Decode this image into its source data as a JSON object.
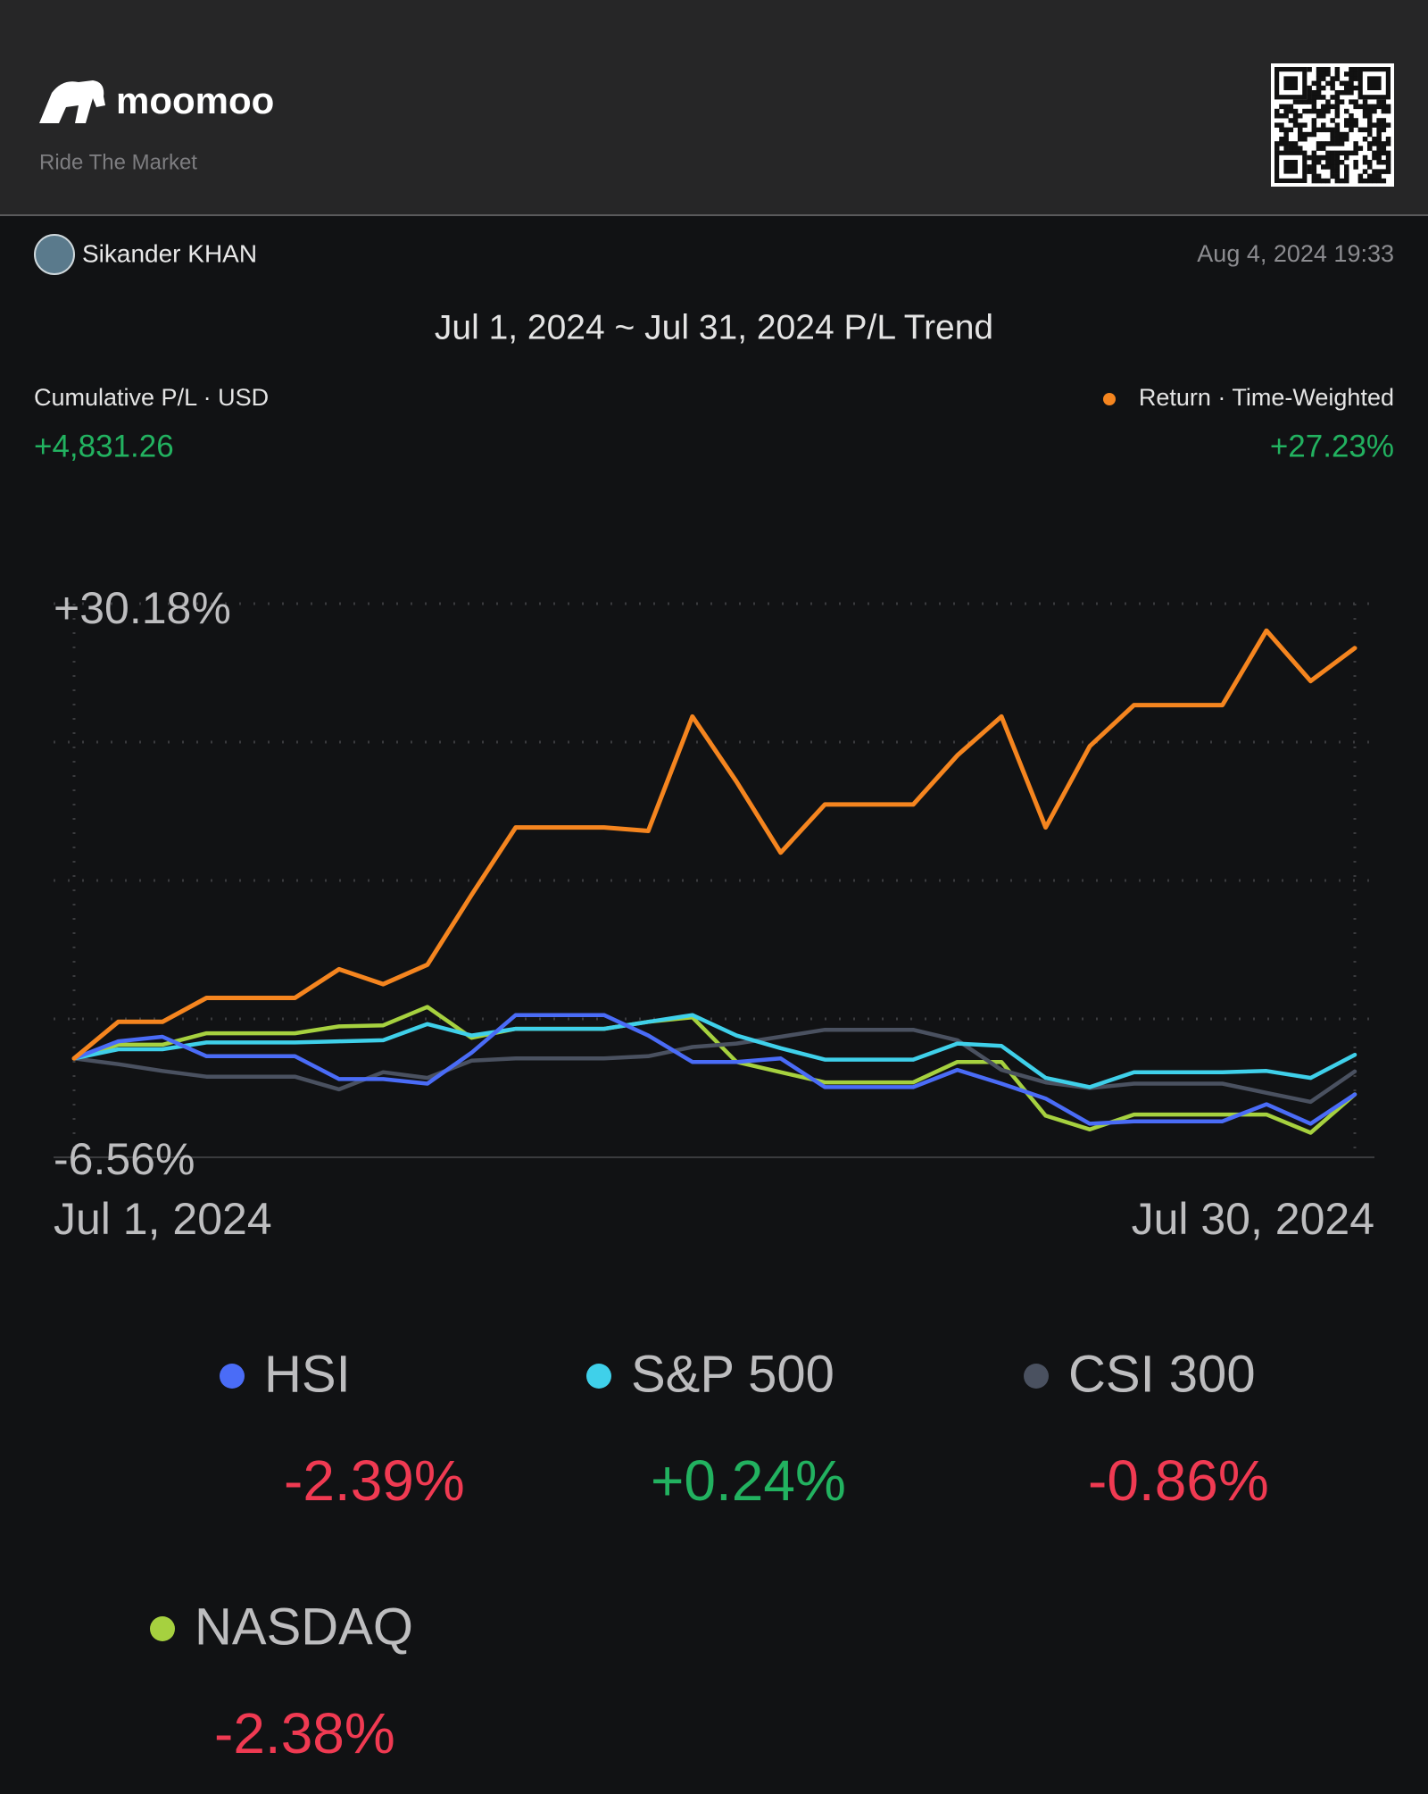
{
  "header": {
    "brand": "moomoo",
    "tagline": "Ride The Market"
  },
  "user": {
    "name": "Sikander KHAN",
    "timestamp": "Aug 4, 2024 19:33"
  },
  "summary": {
    "pl_label": "Cumulative P/L · USD",
    "pl_value": "+4,831.26"
  },
  "chart_data": {
    "type": "line",
    "title": "Jul 1, 2024 ~ Jul 31, 2024 P/L Trend",
    "categories": [
      "Jul 1, 2024",
      null,
      null,
      null,
      null,
      null,
      null,
      null,
      null,
      null,
      null,
      null,
      null,
      null,
      null,
      null,
      null,
      null,
      null,
      null,
      null,
      null,
      null,
      null,
      null,
      null,
      null,
      null,
      null,
      "Jul 30, 2024"
    ],
    "ylim": [
      -6.56,
      30.18
    ],
    "yticks": [
      {
        "value": 30.18,
        "label": "+30.18%"
      },
      {
        "value": -6.56,
        "label": "-6.56%"
      }
    ],
    "grid": true,
    "series": [
      {
        "name": "Return · Time-Weighted",
        "color": "#f5851f",
        "change": 27.23,
        "change_label": "+27.23%",
        "values": [
          0,
          2.43,
          2.43,
          4.02,
          4.02,
          4.02,
          5.92,
          4.93,
          6.22,
          10.85,
          15.33,
          15.33,
          15.33,
          15.1,
          22.69,
          18.37,
          13.66,
          16.85,
          16.85,
          16.85,
          20.11,
          22.69,
          15.33,
          20.72,
          23.45,
          23.45,
          23.45,
          28.39,
          25.05,
          27.23
        ]
      },
      {
        "name": "HSI",
        "color": "#4a6cf7",
        "change": -2.39,
        "change_label": "-2.39%",
        "values": [
          0,
          1.14,
          1.44,
          0.15,
          0.15,
          0.15,
          -1.37,
          -1.37,
          -1.67,
          0.38,
          2.88,
          2.88,
          2.88,
          1.52,
          -0.23,
          -0.23,
          0,
          -1.9,
          -1.9,
          -1.9,
          -0.76,
          -1.67,
          -2.66,
          -4.33,
          -4.17,
          -4.17,
          -4.17,
          -3.04,
          -4.33,
          -2.39
        ]
      },
      {
        "name": "S&P 500",
        "color": "#3fd0ea",
        "change": 0.24,
        "change_label": "+0.24%",
        "values": [
          0,
          0.61,
          0.61,
          1.06,
          1.06,
          1.06,
          1.14,
          1.21,
          2.28,
          1.52,
          1.97,
          1.97,
          1.97,
          2.43,
          2.88,
          1.52,
          0.68,
          -0.08,
          -0.08,
          -0.08,
          0.99,
          0.83,
          -1.29,
          -1.9,
          -0.91,
          -0.91,
          -0.91,
          -0.83,
          -1.29,
          0.24
        ]
      },
      {
        "name": "CSI 300",
        "color": "#4a5160",
        "change": -0.86,
        "change_label": "-0.86%",
        "values": [
          0,
          -0.38,
          -0.83,
          -1.21,
          -1.21,
          -1.21,
          -2.05,
          -0.91,
          -1.29,
          -0.15,
          0,
          0,
          0,
          0.15,
          0.76,
          0.99,
          1.44,
          1.9,
          1.9,
          1.9,
          1.21,
          -0.76,
          -1.59,
          -1.97,
          -1.67,
          -1.67,
          -1.67,
          -2.28,
          -2.88,
          -0.86
        ]
      },
      {
        "name": "NASDAQ",
        "color": "#a6d13f",
        "change": -2.38,
        "change_label": "-2.38%",
        "values": [
          0,
          0.91,
          0.91,
          1.67,
          1.67,
          1.67,
          2.13,
          2.2,
          3.42,
          1.37,
          1.97,
          1.97,
          1.97,
          2.43,
          2.73,
          -0.23,
          -0.91,
          -1.59,
          -1.59,
          -1.59,
          -0.23,
          -0.23,
          -3.8,
          -4.71,
          -3.72,
          -3.72,
          -3.72,
          -3.72,
          -4.93,
          -2.38
        ]
      }
    ]
  }
}
